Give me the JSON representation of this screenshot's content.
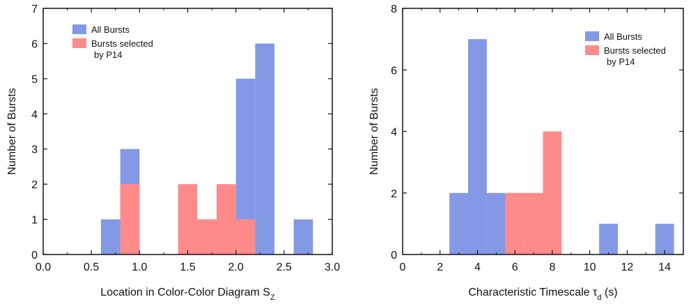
{
  "chart_data": [
    {
      "type": "bar",
      "xlabel": "Location in Color-Color Diagram S",
      "xlabel_sub": "Z",
      "ylabel": "Number of Bursts",
      "xlim": [
        0.0,
        3.0
      ],
      "ylim": [
        0,
        7
      ],
      "xticks": [
        "0.0",
        "0.5",
        "1.0",
        "1.5",
        "2.0",
        "2.5",
        "3.0"
      ],
      "yticks": [
        "0",
        "1",
        "2",
        "3",
        "4",
        "5",
        "6",
        "7"
      ],
      "bin_width": 0.2,
      "legend": {
        "position": "top-left",
        "entries": [
          {
            "label": "All Bursts",
            "color": "#8399E6"
          },
          {
            "label": "Bursts selected",
            "label2": "by P14",
            "color": "#FF8A8A"
          }
        ]
      },
      "series": [
        {
          "name": "All Bursts",
          "color": "#8399E6",
          "bins": [
            {
              "x0": 0.6,
              "x1": 0.8,
              "value": 1
            },
            {
              "x0": 0.8,
              "x1": 1.0,
              "value": 3
            },
            {
              "x0": 2.0,
              "x1": 2.2,
              "value": 5
            },
            {
              "x0": 2.2,
              "x1": 2.4,
              "value": 6
            },
            {
              "x0": 2.6,
              "x1": 2.8,
              "value": 1
            }
          ]
        },
        {
          "name": "Bursts selected by P14",
          "color": "#FF8A8A",
          "bins": [
            {
              "x0": 0.8,
              "x1": 1.0,
              "value": 2
            },
            {
              "x0": 1.4,
              "x1": 1.6,
              "value": 2
            },
            {
              "x0": 1.6,
              "x1": 1.8,
              "value": 1
            },
            {
              "x0": 1.8,
              "x1": 2.0,
              "value": 2
            },
            {
              "x0": 2.0,
              "x1": 2.2,
              "value": 1
            }
          ]
        }
      ]
    },
    {
      "type": "bar",
      "xlabel": "Characteristic Timescale τ",
      "xlabel_sub": "d",
      "xlabel_suffix": " (s)",
      "ylabel": "Number of Bursts",
      "xlim": [
        0,
        15
      ],
      "ylim": [
        0,
        8
      ],
      "xticks": [
        "0",
        "2",
        "4",
        "6",
        "8",
        "10",
        "12",
        "14"
      ],
      "yticks": [
        "0",
        "2",
        "4",
        "6",
        "8"
      ],
      "bin_width": 1,
      "legend": {
        "position": "top-right",
        "entries": [
          {
            "label": "All Bursts",
            "color": "#8399E6"
          },
          {
            "label": "Bursts selected",
            "label2": "by P14",
            "color": "#FF8A8A"
          }
        ]
      },
      "series": [
        {
          "name": "All Bursts",
          "color": "#8399E6",
          "bins": [
            {
              "x0": 2.5,
              "x1": 3.5,
              "value": 2
            },
            {
              "x0": 3.5,
              "x1": 4.5,
              "value": 7
            },
            {
              "x0": 4.5,
              "x1": 5.5,
              "value": 2
            },
            {
              "x0": 10.5,
              "x1": 11.5,
              "value": 1
            },
            {
              "x0": 13.5,
              "x1": 14.5,
              "value": 1
            }
          ]
        },
        {
          "name": "Bursts selected by P14",
          "color": "#FF8A8A",
          "bins": [
            {
              "x0": 5.5,
              "x1": 6.5,
              "value": 2
            },
            {
              "x0": 6.5,
              "x1": 7.5,
              "value": 2
            },
            {
              "x0": 7.5,
              "x1": 8.5,
              "value": 4
            }
          ]
        }
      ]
    }
  ]
}
